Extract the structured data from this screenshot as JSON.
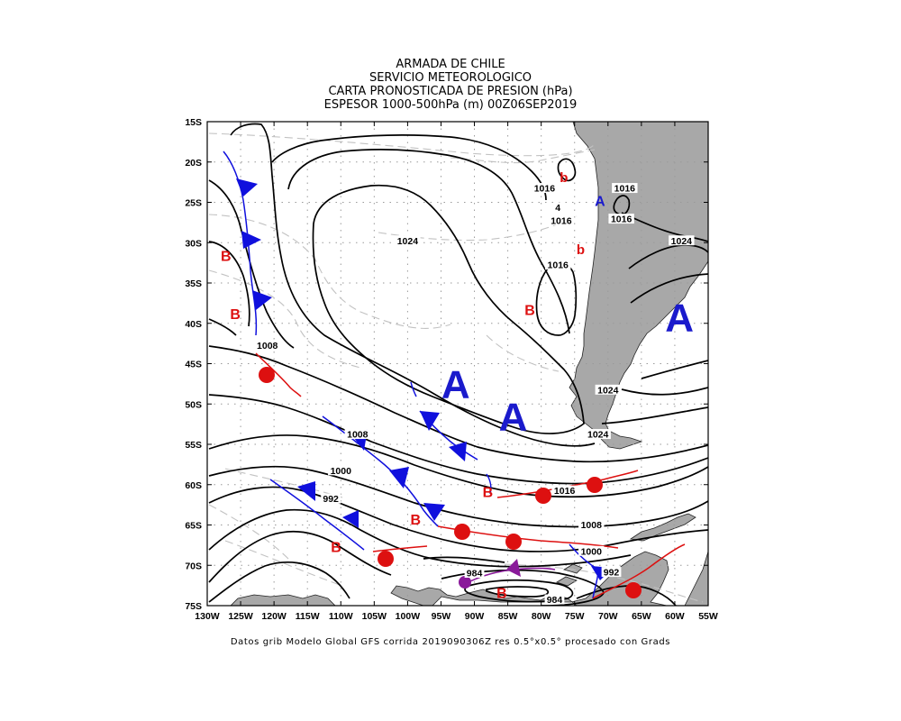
{
  "title": {
    "line1": "ARMADA DE CHILE",
    "line2": "SERVICIO METEOROLOGICO",
    "line3": "CARTA PRONOSTICADA DE PRESION (hPa)",
    "line4": "ESPESOR 1000-500hPa (m) 00Z06SEP2019"
  },
  "footer": "Datos grib Modelo Global GFS corrida 2019090306Z res 0.5°x0.5° procesado con Grads",
  "map": {
    "lon_labels": [
      "130W",
      "125W",
      "120W",
      "115W",
      "110W",
      "105W",
      "100W",
      "95W",
      "90W",
      "85W",
      "80W",
      "75W",
      "70W",
      "65W",
      "60W",
      "55W"
    ],
    "lat_labels": [
      "15S",
      "20S",
      "25S",
      "30S",
      "35S",
      "40S",
      "45S",
      "50S",
      "55S",
      "60S",
      "65S",
      "70S",
      "75S"
    ],
    "lon_range": [
      -130,
      -55
    ],
    "lat_range": [
      -75,
      -15
    ],
    "grid": true,
    "colors": {
      "land": "#a8a8a8",
      "isobar": "#000000",
      "thickness": "#bdbdbd",
      "cold_front": "#1010dd",
      "warm_front": "#dd1010",
      "occluded_front": "#8a1a9a",
      "high_label": "#1a1acc",
      "low_label": "#dd1010"
    },
    "isobar_labels": [
      {
        "text": "1024",
        "lon": -100,
        "lat": -30
      },
      {
        "text": "1016",
        "lon": -79.5,
        "lat": -23.5
      },
      {
        "text": "1016",
        "lon": -77,
        "lat": -27.5
      },
      {
        "text": "1016",
        "lon": -67.5,
        "lat": -23.5
      },
      {
        "text": "1016",
        "lon": -68,
        "lat": -27.3
      },
      {
        "text": "1024",
        "lon": -59,
        "lat": -30
      },
      {
        "text": "1016",
        "lon": -77.5,
        "lat": -33
      },
      {
        "text": "1008",
        "lon": -121,
        "lat": -43
      },
      {
        "text": "1024",
        "lon": -70,
        "lat": -48.5
      },
      {
        "text": "1024",
        "lon": -71.5,
        "lat": -54
      },
      {
        "text": "1008",
        "lon": -107.5,
        "lat": -54
      },
      {
        "text": "1000",
        "lon": -110,
        "lat": -58.5
      },
      {
        "text": "992",
        "lon": -111.5,
        "lat": -62
      },
      {
        "text": "1016",
        "lon": -76.5,
        "lat": -61
      },
      {
        "text": "1008",
        "lon": -72.5,
        "lat": -65.2
      },
      {
        "text": "1000",
        "lon": -72.5,
        "lat": -68.5
      },
      {
        "text": "992",
        "lon": -69.5,
        "lat": -71.1
      },
      {
        "text": "984",
        "lon": -90,
        "lat": -71.2
      },
      {
        "text": "984",
        "lon": -78,
        "lat": -74.5
      },
      {
        "text": "4",
        "lon": -77.5,
        "lat": -25.9
      }
    ],
    "highs": [
      {
        "text": "A",
        "lon": -92.8,
        "lat": -47.5,
        "size": "large"
      },
      {
        "text": "A",
        "lon": -84.2,
        "lat": -51.5,
        "size": "large"
      },
      {
        "text": "A",
        "lon": -59.3,
        "lat": -39.2,
        "size": "large"
      },
      {
        "text": "A",
        "lon": -71.2,
        "lat": -24.8,
        "size": "small"
      }
    ],
    "lows": [
      {
        "text": "B",
        "lon": -127.2,
        "lat": -31.6,
        "size": "normal"
      },
      {
        "text": "B",
        "lon": -125.8,
        "lat": -38.8,
        "size": "normal"
      },
      {
        "text": "B",
        "lon": -81.7,
        "lat": -38.3,
        "size": "normal"
      },
      {
        "text": "B",
        "lon": -88,
        "lat": -60.9,
        "size": "normal"
      },
      {
        "text": "B",
        "lon": -98.8,
        "lat": -64.3,
        "size": "normal"
      },
      {
        "text": "B",
        "lon": -110.7,
        "lat": -67.7,
        "size": "normal"
      },
      {
        "text": "B",
        "lon": -85.9,
        "lat": -73.4,
        "size": "normal"
      },
      {
        "text": "b",
        "lon": -76.6,
        "lat": -21.9,
        "size": "small"
      },
      {
        "text": "b",
        "lon": -74.1,
        "lat": -30.8,
        "size": "small"
      }
    ]
  }
}
